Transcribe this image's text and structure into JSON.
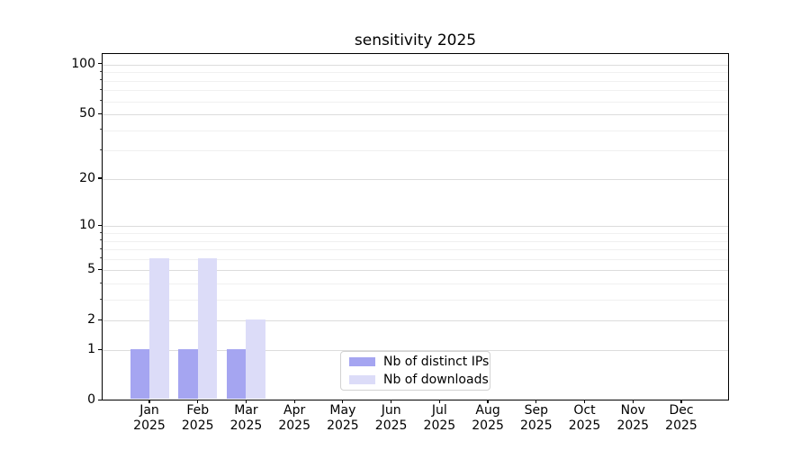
{
  "chart_data": {
    "type": "bar",
    "title": "sensitivity 2025",
    "categories": [
      "Jan",
      "Feb",
      "Mar",
      "Apr",
      "May",
      "Jun",
      "Jul",
      "Aug",
      "Sep",
      "Oct",
      "Nov",
      "Dec"
    ],
    "category_year": "2025",
    "series": [
      {
        "name": "Nb of distinct IPs",
        "color": "#a5a5f1",
        "values": [
          1,
          1,
          1,
          0,
          0,
          0,
          0,
          0,
          0,
          0,
          0,
          0
        ]
      },
      {
        "name": "Nb of downloads",
        "color": "#dcdcf8",
        "values": [
          6,
          6,
          2,
          0,
          0,
          0,
          0,
          0,
          0,
          0,
          0,
          0
        ]
      }
    ],
    "xlabel": "",
    "ylabel": "",
    "yscale": "log1p",
    "ylim": [
      0,
      116
    ],
    "yticks": [
      0,
      1,
      2,
      5,
      10,
      20,
      50,
      100
    ],
    "yticks_minor": [
      3,
      4,
      6,
      7,
      8,
      9,
      30,
      40,
      60,
      70,
      80,
      90
    ],
    "grid": true,
    "legend_position": "inside-lower-center",
    "colors": {
      "axis": "#000000",
      "grid_major": "#dcdcdc",
      "grid_minor": "#f0f0f0",
      "legend_border": "#d2d2d2",
      "background": "#ffffff"
    }
  }
}
